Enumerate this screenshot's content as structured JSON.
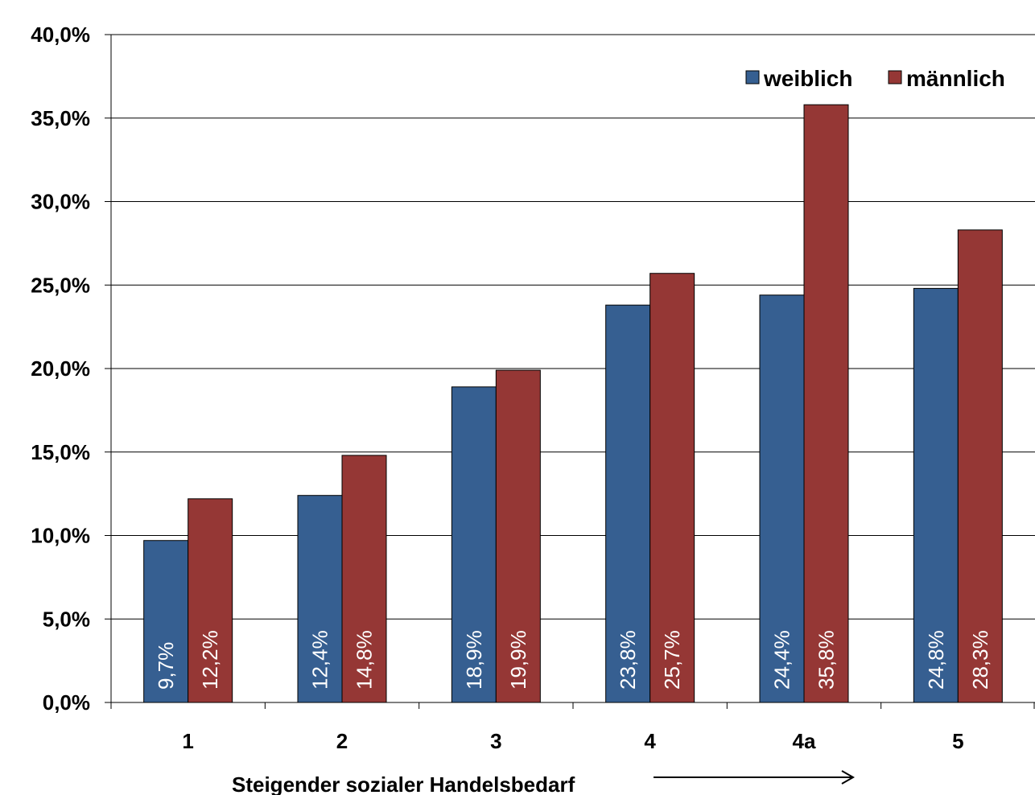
{
  "chart_data": {
    "type": "bar",
    "categories": [
      "1",
      "2",
      "3",
      "4",
      "4a",
      "5"
    ],
    "series": [
      {
        "name": "weiblich",
        "values": [
          9.7,
          12.4,
          18.9,
          23.8,
          24.4,
          24.8
        ],
        "labels": [
          "9,7%",
          "12,4%",
          "18,9%",
          "23,8%",
          "24,4%",
          "24,8%"
        ],
        "color": "#365f91"
      },
      {
        "name": "männlich",
        "values": [
          12.2,
          14.8,
          19.9,
          25.7,
          35.8,
          28.3
        ],
        "labels": [
          "12,2%",
          "14,8%",
          "19,9%",
          "25,7%",
          "35,8%",
          "28,3%"
        ],
        "color": "#953735"
      }
    ],
    "ylim": [
      0,
      40
    ],
    "yticks": [
      0,
      5,
      10,
      15,
      20,
      25,
      30,
      35,
      40
    ],
    "ytick_labels": [
      "0,0%",
      "5,0%",
      "10,0%",
      "15,0%",
      "20,0%",
      "25,0%",
      "30,0%",
      "35,0%",
      "40,0%"
    ],
    "xlabel": "Steigender sozialer Handelsbedarf",
    "grid": true,
    "legend_position": "top-right"
  }
}
